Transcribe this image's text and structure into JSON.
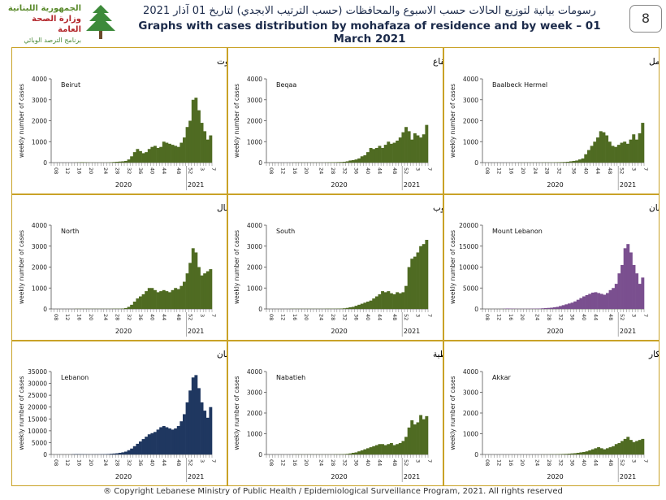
{
  "header": {
    "logo_line1": "الجمهورية اللبنانية",
    "logo_line2": "وزارة الصحة العامة",
    "logo_line3": "برنامج الترصد الوبائي",
    "title_ar": "رسومات بيانية لتوزيع الحالات حسب الاسبوع والمحافظات (حسب الترتيب الابجدي) لتاريخ 01 آذار 2021",
    "title_en": "Graphs with cases distribution by mohafaza of residence and by week – 01 March 2021",
    "page_number": "8"
  },
  "footer": {
    "text": "® Copyright Lebanese Ministry of Public Health / Epidemiological Surveillance Program, 2021. All rights reserved"
  },
  "colors": {
    "green": "#4f6b22",
    "purple": "#7a4f8f",
    "navy": "#1f3760",
    "border": "#c9a227"
  },
  "chart_data": [
    {
      "type": "bar",
      "title": "توزيع الحالات حسب الاسبوع في محافظة بيروت",
      "label": "Beirut",
      "ylabel": "weekly number of cases",
      "ylim": [
        0,
        4000
      ],
      "yticks": [
        0,
        1000,
        2000,
        3000,
        4000
      ],
      "color": "green",
      "values": [
        0,
        0,
        0,
        0,
        0,
        0,
        0,
        0,
        5,
        10,
        20,
        15,
        10,
        5,
        5,
        5,
        5,
        5,
        5,
        10,
        20,
        30,
        40,
        50,
        60,
        80,
        150,
        300,
        500,
        650,
        550,
        450,
        500,
        650,
        750,
        800,
        700,
        750,
        1000,
        950,
        900,
        850,
        800,
        750,
        950,
        1200,
        1700,
        2000,
        3000,
        3100,
        2500,
        1900,
        1500,
        1100,
        1300
      ]
    },
    {
      "type": "bar",
      "title": "توزيع الحالات حسب الاسبوع في محافظة البقاع",
      "label": "Beqaa",
      "ylabel": "weekly number of cases",
      "ylim": [
        0,
        4000
      ],
      "yticks": [
        0,
        1000,
        2000,
        3000,
        4000
      ],
      "color": "green",
      "values": [
        0,
        0,
        0,
        0,
        0,
        0,
        0,
        0,
        0,
        5,
        5,
        5,
        5,
        5,
        5,
        5,
        5,
        5,
        5,
        5,
        10,
        15,
        20,
        20,
        25,
        30,
        40,
        60,
        100,
        120,
        150,
        200,
        300,
        350,
        500,
        700,
        650,
        700,
        800,
        700,
        850,
        1000,
        900,
        950,
        1050,
        1200,
        1450,
        1700,
        1500,
        1100,
        1400,
        1300,
        1200,
        1350,
        1800
      ]
    },
    {
      "type": "bar",
      "title": "توزيع الحالات حسب الاسبوع في محافظة بعلبك الهرمل",
      "label": "Baalbeck Hermel",
      "ylabel": "weekly number of cases",
      "ylim": [
        0,
        4000
      ],
      "yticks": [
        0,
        1000,
        2000,
        3000,
        4000
      ],
      "color": "green",
      "values": [
        0,
        0,
        0,
        0,
        0,
        0,
        0,
        0,
        0,
        0,
        0,
        0,
        5,
        5,
        5,
        5,
        5,
        5,
        5,
        5,
        10,
        10,
        10,
        10,
        15,
        20,
        25,
        30,
        40,
        60,
        80,
        100,
        150,
        200,
        400,
        600,
        800,
        1000,
        1200,
        1500,
        1450,
        1300,
        1000,
        800,
        750,
        850,
        950,
        1000,
        900,
        1100,
        1350,
        1100,
        1400,
        1900
      ]
    },
    {
      "type": "bar",
      "title": "توزيع الحالات حسب الاسبوع في محافظة الشمال",
      "label": "North",
      "ylabel": "weekly number of cases",
      "ylim": [
        0,
        4000
      ],
      "yticks": [
        0,
        1000,
        2000,
        3000,
        4000
      ],
      "color": "green",
      "values": [
        0,
        0,
        0,
        0,
        0,
        0,
        0,
        0,
        5,
        5,
        5,
        5,
        5,
        5,
        5,
        5,
        5,
        5,
        5,
        5,
        5,
        10,
        10,
        10,
        20,
        40,
        100,
        200,
        350,
        500,
        600,
        700,
        850,
        1000,
        1000,
        900,
        800,
        850,
        900,
        850,
        800,
        900,
        1000,
        950,
        1100,
        1300,
        1700,
        2200,
        2900,
        2700,
        2000,
        1600,
        1700,
        1800,
        1900
      ]
    },
    {
      "type": "bar",
      "title": "توزيع الحالات حسب الاسبوع في محافظة الجنوب",
      "label": "South",
      "ylabel": "weekly number of cases",
      "ylim": [
        0,
        4000
      ],
      "yticks": [
        0,
        1000,
        2000,
        3000,
        4000
      ],
      "color": "green",
      "values": [
        0,
        0,
        0,
        0,
        0,
        0,
        0,
        0,
        5,
        5,
        5,
        5,
        5,
        5,
        5,
        5,
        5,
        5,
        5,
        5,
        10,
        10,
        10,
        10,
        15,
        20,
        30,
        50,
        80,
        100,
        150,
        200,
        250,
        300,
        350,
        400,
        500,
        600,
        700,
        850,
        800,
        850,
        750,
        700,
        800,
        750,
        800,
        1100,
        2000,
        2400,
        2500,
        2700,
        3000,
        3100,
        3300
      ]
    },
    {
      "type": "bar",
      "title": "توزيع الحالات حسب الاسبوع في محافظة جبل لبنان",
      "label": "Mount Lebanon",
      "ylabel": "weekly number of cases",
      "ylim": [
        0,
        20000
      ],
      "yticks": [
        0,
        5000,
        10000,
        15000,
        20000
      ],
      "color": "purple",
      "values": [
        0,
        0,
        0,
        0,
        0,
        0,
        0,
        50,
        100,
        80,
        60,
        40,
        30,
        30,
        30,
        40,
        50,
        60,
        80,
        100,
        150,
        200,
        250,
        300,
        400,
        500,
        700,
        900,
        1100,
        1300,
        1500,
        1800,
        2200,
        2600,
        3000,
        3300,
        3600,
        3900,
        4000,
        3800,
        3600,
        3400,
        3800,
        4500,
        5000,
        6000,
        8500,
        10500,
        14500,
        15500,
        13500,
        10500,
        8500,
        6000,
        7500
      ]
    },
    {
      "type": "bar",
      "title": "توزيع الحالات حسب الاسبوع في لبنان",
      "label": "Lebanon",
      "ylabel": "weekly number of cases",
      "ylim": [
        0,
        35000
      ],
      "yticks": [
        0,
        5000,
        10000,
        15000,
        20000,
        25000,
        30000,
        35000
      ],
      "color": "navy",
      "values": [
        0,
        0,
        0,
        0,
        0,
        0,
        0,
        80,
        150,
        120,
        100,
        80,
        60,
        60,
        70,
        80,
        100,
        120,
        150,
        200,
        300,
        400,
        500,
        700,
        900,
        1200,
        1800,
        2500,
        3500,
        4500,
        5500,
        6500,
        7500,
        8500,
        9000,
        9500,
        10500,
        11500,
        12000,
        11500,
        11000,
        10500,
        11000,
        12000,
        14000,
        17000,
        22000,
        27000,
        32500,
        33500,
        28000,
        22000,
        18500,
        15500,
        20000
      ]
    },
    {
      "type": "bar",
      "title": "توزيع الحالات حسب الاسبوع في محافظة النبطية",
      "label": "Nabatieh",
      "ylabel": "weekly number of cases",
      "ylim": [
        0,
        4000
      ],
      "yticks": [
        0,
        1000,
        2000,
        3000,
        4000
      ],
      "color": "green",
      "values": [
        0,
        0,
        0,
        0,
        0,
        0,
        0,
        0,
        0,
        5,
        5,
        5,
        5,
        5,
        5,
        5,
        5,
        5,
        5,
        5,
        5,
        5,
        5,
        10,
        10,
        15,
        20,
        30,
        50,
        80,
        100,
        150,
        200,
        250,
        300,
        350,
        400,
        450,
        500,
        500,
        450,
        500,
        550,
        450,
        500,
        550,
        650,
        850,
        1300,
        1650,
        1450,
        1550,
        1900,
        1700,
        1850
      ]
    },
    {
      "type": "bar",
      "title": "توزيع الحالات حسب الاسبوع في محافظة عكار",
      "label": "Akkar",
      "ylabel": "weekly number of cases",
      "ylim": [
        0,
        4000
      ],
      "yticks": [
        0,
        1000,
        2000,
        3000,
        4000
      ],
      "color": "green",
      "values": [
        0,
        0,
        0,
        0,
        0,
        0,
        0,
        0,
        0,
        0,
        0,
        0,
        0,
        0,
        0,
        0,
        0,
        0,
        0,
        0,
        5,
        5,
        5,
        10,
        10,
        15,
        20,
        25,
        30,
        40,
        50,
        60,
        80,
        100,
        120,
        150,
        200,
        250,
        300,
        350,
        300,
        250,
        300,
        350,
        400,
        500,
        550,
        650,
        750,
        850,
        700,
        600,
        650,
        700,
        750
      ]
    }
  ],
  "x_axis": {
    "tick_labels": [
      "08",
      "12",
      "16",
      "20",
      "24",
      "28",
      "32",
      "36",
      "40",
      "44",
      "48",
      "52",
      "3",
      "7"
    ],
    "year_left": "2020",
    "year_right": "2021"
  }
}
